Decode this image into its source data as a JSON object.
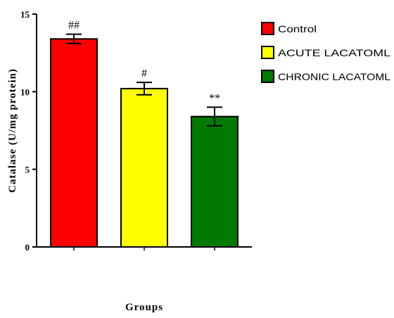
{
  "chart_data": {
    "type": "bar",
    "categories": [
      "Control",
      "ACUTE LACATOML",
      "CHRONIC LACATOML"
    ],
    "values": [
      13.4,
      10.2,
      8.4
    ],
    "errors": [
      0.3,
      0.4,
      0.6
    ],
    "annotations": [
      "##",
      "#",
      "**"
    ],
    "colors": [
      "#ff0000",
      "#ffff00",
      "#007a00"
    ],
    "xlabel": "Groups",
    "ylabel": "Catalase (U/mg protein)",
    "ylim": [
      0,
      15
    ],
    "yticks": [
      0,
      5,
      10,
      15
    ],
    "grid": false,
    "legend_position": "top-right"
  }
}
